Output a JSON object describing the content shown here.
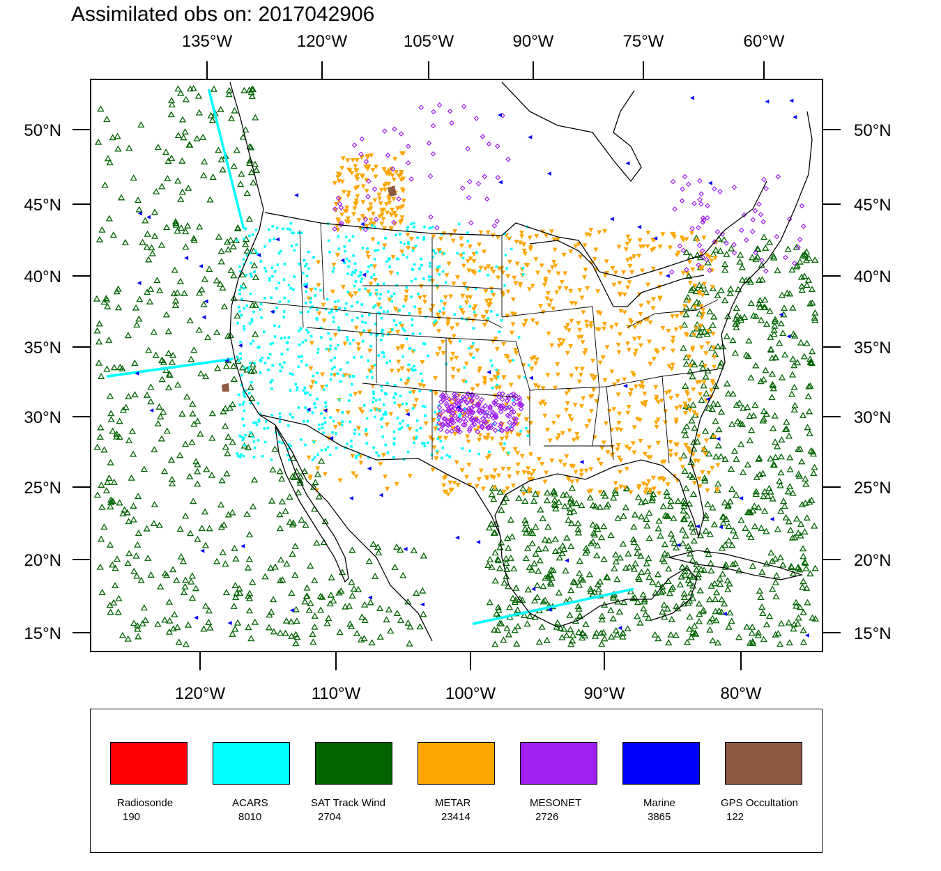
{
  "title": "Assimilated obs on: 2017042906",
  "map": {
    "region": "North America (CONUS, Mexico, Gulf of Mexico, Caribbean)",
    "colors": {
      "land_outline": "#000000",
      "background": "#ffffff"
    },
    "top_axis": {
      "labels": [
        "135°W",
        "120°W",
        "105°W",
        "90°W",
        "75°W",
        "60°W"
      ]
    },
    "bottom_axis": {
      "labels": [
        "120°W",
        "110°W",
        "100°W",
        "90°W",
        "80°W"
      ]
    },
    "left_axis": {
      "labels": [
        "50°N",
        "45°N",
        "40°N",
        "35°N",
        "30°N",
        "25°N",
        "20°N",
        "15°N"
      ]
    },
    "right_axis": {
      "labels": [
        "50°N",
        "45°N",
        "40°N",
        "35°N",
        "30°N",
        "25°N",
        "20°N",
        "15°N"
      ]
    }
  },
  "legend": {
    "items": [
      {
        "label": "Radiosonde",
        "count": "190",
        "color": "#ff0000"
      },
      {
        "label": "ACARS",
        "count": "8010",
        "color": "#00ffff"
      },
      {
        "label": "SAT Track Wind",
        "count": "2704",
        "color": "#006400"
      },
      {
        "label": "METAR",
        "count": "23414",
        "color": "#ffa500"
      },
      {
        "label": "MESONET",
        "count": "2726",
        "color": "#a020f0"
      },
      {
        "label": "Marine",
        "count": "3865",
        "color": "#0000ff"
      },
      {
        "label": "GPS Occultation",
        "count": "122",
        "color": "#8b5a41"
      }
    ]
  }
}
